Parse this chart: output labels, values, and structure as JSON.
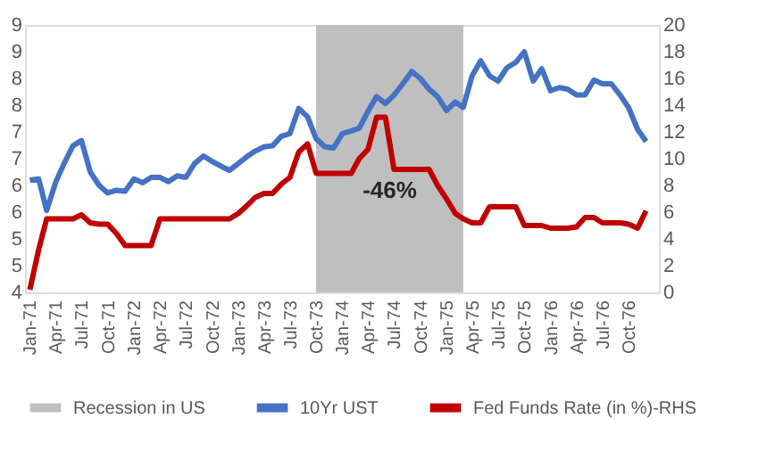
{
  "chart_data": {
    "type": "line",
    "x": [
      "1971-01",
      "1971-02",
      "1971-03",
      "1971-04",
      "1971-05",
      "1971-06",
      "1971-07",
      "1971-08",
      "1971-09",
      "1971-10",
      "1971-11",
      "1971-12",
      "1972-01",
      "1972-02",
      "1972-03",
      "1972-04",
      "1972-05",
      "1972-06",
      "1972-07",
      "1972-08",
      "1972-09",
      "1972-10",
      "1972-11",
      "1972-12",
      "1973-01",
      "1973-02",
      "1973-03",
      "1973-04",
      "1973-05",
      "1973-06",
      "1973-07",
      "1973-08",
      "1973-09",
      "1973-10",
      "1973-11",
      "1973-12",
      "1974-01",
      "1974-02",
      "1974-03",
      "1974-04",
      "1974-05",
      "1974-06",
      "1974-07",
      "1974-08",
      "1974-09",
      "1974-10",
      "1974-11",
      "1974-12",
      "1975-01",
      "1975-02",
      "1975-03",
      "1975-04",
      "1975-05",
      "1975-06",
      "1975-07",
      "1975-08",
      "1975-09",
      "1975-10",
      "1975-11",
      "1975-12",
      "1976-01",
      "1976-02",
      "1976-03",
      "1976-04",
      "1976-05",
      "1976-06",
      "1976-07",
      "1976-08",
      "1976-09",
      "1976-10",
      "1976-11",
      "1976-12"
    ],
    "series": [
      {
        "name": "10Yr UST",
        "color": "#4472c4",
        "values": [
          6.1,
          6.12,
          5.53,
          6.05,
          6.41,
          6.74,
          6.84,
          6.25,
          6.0,
          5.86,
          5.91,
          5.89,
          6.12,
          6.05,
          6.15,
          6.15,
          6.07,
          6.18,
          6.15,
          6.41,
          6.55,
          6.45,
          6.36,
          6.28,
          6.41,
          6.54,
          6.64,
          6.72,
          6.74,
          6.92,
          6.97,
          7.44,
          7.28,
          6.87,
          6.72,
          6.7,
          6.97,
          7.02,
          7.07,
          7.39,
          7.66,
          7.53,
          7.69,
          7.9,
          8.13,
          8.0,
          7.8,
          7.66,
          7.4,
          7.56,
          7.46,
          8.05,
          8.33,
          8.05,
          7.95,
          8.2,
          8.3,
          8.5,
          7.95,
          8.18,
          7.77,
          7.83,
          7.8,
          7.69,
          7.69,
          7.97,
          7.9,
          7.9,
          7.69,
          7.45,
          7.05,
          6.82
        ]
      },
      {
        "name": "Fed Funds Rate (in %)-RHS",
        "color": "#c00000",
        "axis": "y2",
        "values": [
          0.2,
          3.2,
          5.5,
          5.5,
          5.5,
          5.5,
          5.8,
          5.2,
          5.1,
          5.1,
          4.4,
          3.5,
          3.5,
          3.5,
          3.5,
          5.5,
          5.5,
          5.5,
          5.5,
          5.5,
          5.5,
          5.5,
          5.5,
          5.5,
          5.9,
          6.5,
          7.1,
          7.4,
          7.4,
          8.1,
          8.6,
          10.5,
          11.1,
          8.9,
          8.9,
          8.9,
          8.9,
          8.9,
          10.0,
          10.7,
          13.1,
          13.1,
          9.2,
          9.2,
          9.2,
          9.2,
          9.2,
          8.0,
          7.0,
          5.9,
          5.5,
          5.2,
          5.2,
          6.4,
          6.4,
          6.4,
          6.4,
          5.0,
          5.0,
          5.0,
          4.8,
          4.8,
          4.8,
          4.9,
          5.6,
          5.6,
          5.2,
          5.2,
          5.2,
          5.1,
          4.8,
          6.1
        ]
      }
    ],
    "bands": [
      {
        "axis": "x",
        "from": "1973-10",
        "to": "1975-03",
        "label": "Recession in US",
        "color": "#bfbfbf"
      }
    ],
    "annotations": [
      "-46%"
    ],
    "xlim": [
      "1970-12-15",
      "1977-01-15"
    ],
    "xticks": [
      {
        "value": "1971-01",
        "label": "Jan-71"
      },
      {
        "value": "1971-04",
        "label": "Apr-71"
      },
      {
        "value": "1971-07",
        "label": "Jul-71"
      },
      {
        "value": "1971-10",
        "label": "Oct-71"
      },
      {
        "value": "1972-01",
        "label": "Jan-72"
      },
      {
        "value": "1972-04",
        "label": "Apr-72"
      },
      {
        "value": "1972-07",
        "label": "Jul-72"
      },
      {
        "value": "1972-10",
        "label": "Oct-72"
      },
      {
        "value": "1973-01",
        "label": "Jan-73"
      },
      {
        "value": "1973-04",
        "label": "Apr-73"
      },
      {
        "value": "1973-07",
        "label": "Jul-73"
      },
      {
        "value": "1973-10",
        "label": "Oct-73"
      },
      {
        "value": "1974-01",
        "label": "Jan-74"
      },
      {
        "value": "1974-04",
        "label": "Apr-74"
      },
      {
        "value": "1974-07",
        "label": "Jul-74"
      },
      {
        "value": "1974-10",
        "label": "Oct-74"
      },
      {
        "value": "1975-01",
        "label": "Jan-75"
      },
      {
        "value": "1975-04",
        "label": "Apr-75"
      },
      {
        "value": "1975-07",
        "label": "Jul-75"
      },
      {
        "value": "1975-10",
        "label": "Oct-75"
      },
      {
        "value": "1976-01",
        "label": "Jan-76"
      },
      {
        "value": "1976-04",
        "label": "Apr-76"
      },
      {
        "value": "1976-07",
        "label": "Jul-76"
      },
      {
        "value": "1976-10",
        "label": "Oct-76"
      }
    ],
    "ylim": [
      4,
      9
    ],
    "yticks": [
      4,
      {
        "value": 4.5,
        "label": "5"
      },
      5,
      {
        "value": 5.5,
        "label": "6"
      },
      6,
      {
        "value": 6.5,
        "label": "7"
      },
      7,
      {
        "value": 7.5,
        "label": "8"
      },
      8,
      {
        "value": 8.5,
        "label": "9"
      },
      9
    ],
    "y2lim": [
      0,
      20
    ],
    "y2ticks": [
      0,
      2,
      4,
      6,
      8,
      10,
      12,
      14,
      16,
      18,
      20
    ],
    "legend": "bottom",
    "grid": false,
    "marker": "none",
    "line_style": "solid"
  }
}
